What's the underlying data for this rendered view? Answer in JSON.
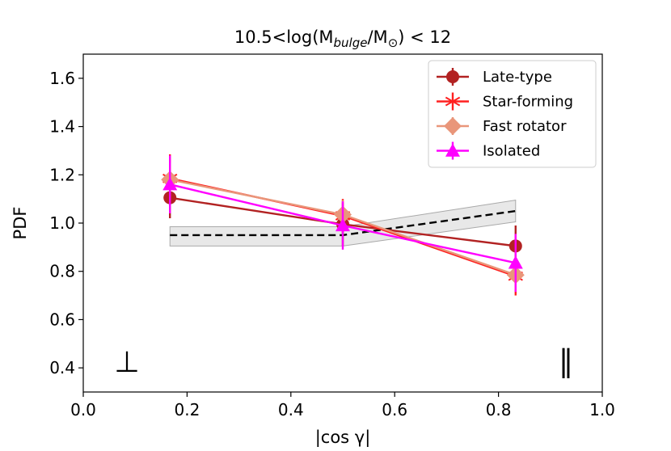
{
  "chart_data": {
    "type": "line",
    "title": "10.5<log(M",
    "title_sub": "bulge",
    "title_mid": "/M",
    "title_sub2": "⊙",
    "title_end": ") < 12",
    "xlabel": "|cos γ|",
    "ylabel": "PDF",
    "xlim": [
      0.0,
      1.0
    ],
    "ylim": [
      0.3,
      1.7
    ],
    "xticks": [
      "0.0",
      "0.2",
      "0.4",
      "0.6",
      "0.8",
      "1.0"
    ],
    "yticks": [
      "0.4",
      "0.6",
      "0.8",
      "1.0",
      "1.2",
      "1.4",
      "1.6"
    ],
    "grid": false,
    "legend_position": "top-right",
    "annotations": [
      {
        "text": "⊥",
        "x": 0.085,
        "y": 0.43
      },
      {
        "text": "∥",
        "x": 0.925,
        "y": 0.43
      }
    ],
    "reference": {
      "x": [
        0.167,
        0.5,
        0.833
      ],
      "y": [
        0.95,
        0.95,
        1.05
      ],
      "band_low": [
        0.905,
        0.905,
        1.005
      ],
      "band_high": [
        0.985,
        0.985,
        1.095
      ],
      "style": "dashed",
      "color": "#000000"
    },
    "series": [
      {
        "name": "Late-type",
        "color": "#b22222",
        "marker": "circle",
        "x": [
          0.167,
          0.5,
          0.833
        ],
        "y": [
          1.105,
          0.995,
          0.905
        ],
        "err": [
          0.085,
          0.09,
          0.085
        ]
      },
      {
        "name": "Star-forming",
        "color": "#ff2020",
        "marker": "star",
        "x": [
          0.167,
          0.5,
          0.833
        ],
        "y": [
          1.185,
          1.03,
          0.78
        ],
        "err": [
          0.1,
          0.07,
          0.08
        ]
      },
      {
        "name": "Fast rotator",
        "color": "#e9967a",
        "marker": "diamond",
        "x": [
          0.167,
          0.5,
          0.833
        ],
        "y": [
          1.18,
          1.035,
          0.785
        ],
        "err": [
          0.07,
          0.06,
          0.06
        ]
      },
      {
        "name": "Isolated",
        "color": "#ff00ff",
        "marker": "triangle",
        "x": [
          0.167,
          0.5,
          0.833
        ],
        "y": [
          1.16,
          0.99,
          0.835
        ],
        "err": [
          0.12,
          0.1,
          0.12
        ]
      }
    ]
  }
}
